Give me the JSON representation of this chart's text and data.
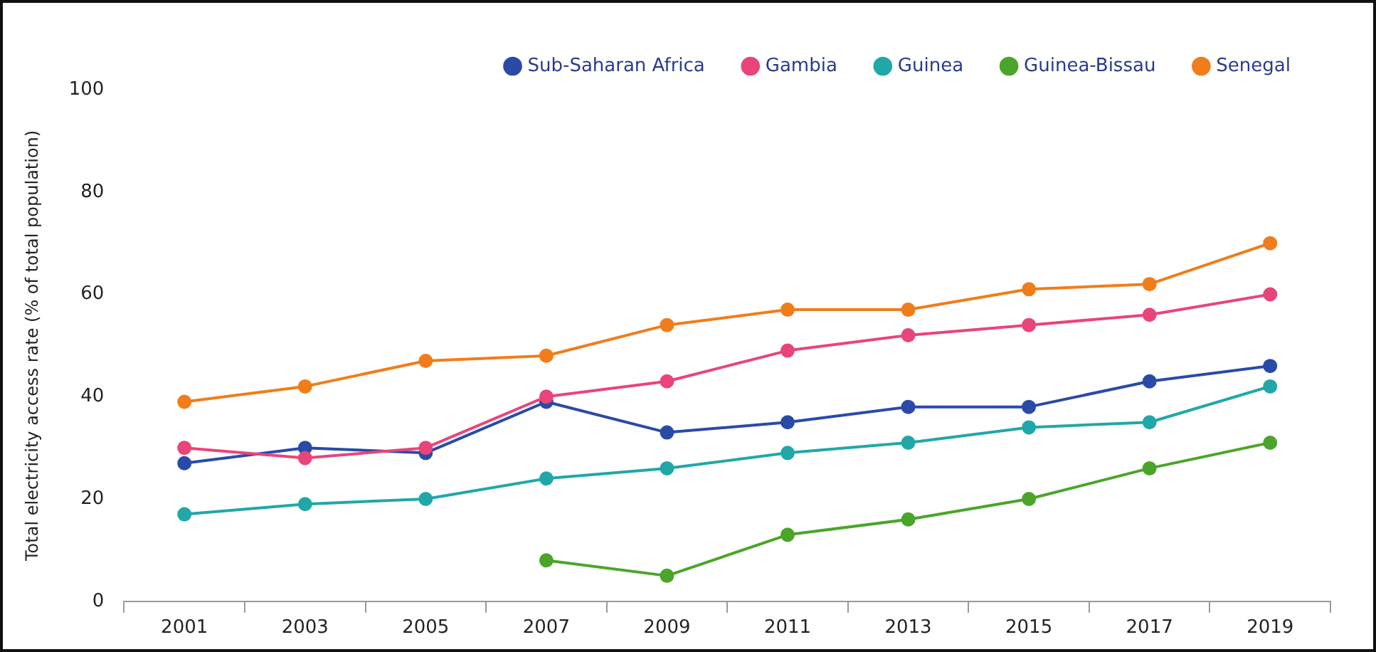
{
  "chart_data": {
    "type": "line",
    "ylabel": "Total electricity access rate (% of total population)",
    "categories": [
      "2001",
      "2003",
      "2005",
      "2007",
      "2009",
      "2011",
      "2013",
      "2015",
      "2017",
      "2019"
    ],
    "series": [
      {
        "name": "Sub-Saharan Africa",
        "color": "#2a4aa8",
        "values": [
          27,
          30,
          29,
          39,
          33,
          35,
          38,
          38,
          43,
          46
        ]
      },
      {
        "name": "Gambia",
        "color": "#e8457a",
        "values": [
          30,
          28,
          30,
          40,
          43,
          49,
          52,
          54,
          56,
          60
        ]
      },
      {
        "name": "Guinea",
        "color": "#21a7a8",
        "values": [
          17,
          19,
          20,
          24,
          26,
          29,
          31,
          34,
          35,
          42
        ]
      },
      {
        "name": "Guinea-Bissau",
        "color": "#4aa52a",
        "values": [
          null,
          null,
          null,
          8,
          5,
          13,
          16,
          20,
          26,
          31
        ]
      },
      {
        "name": "Senegal",
        "color": "#f07d1a",
        "values": [
          39,
          42,
          47,
          48,
          54,
          57,
          57,
          61,
          62,
          70
        ]
      }
    ],
    "ylim": [
      0,
      100
    ],
    "yticks": [
      0,
      20,
      40,
      60,
      80,
      100
    ],
    "grid": false,
    "legend": "top right",
    "marker": "circle",
    "line_style": "solid"
  }
}
